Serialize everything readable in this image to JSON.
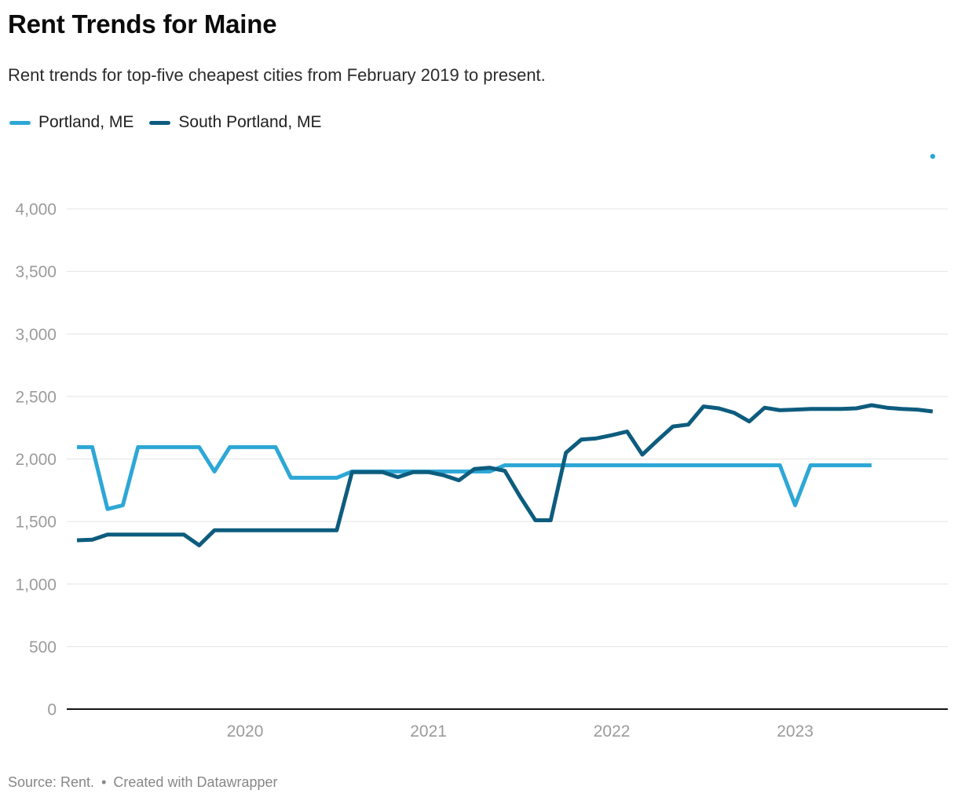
{
  "header": {
    "title": "Rent Trends for Maine",
    "subtitle": "Rent trends for top-five cheapest cities from February 2019 to present."
  },
  "footer": {
    "source": "Source: Rent.",
    "separator": "•",
    "attribution": "Created with Datawrapper"
  },
  "colors": {
    "portland": "#2da7d6",
    "south_portland": "#0d5c7e",
    "gridline": "#e4e4e4",
    "axis_text": "#9b9b9b",
    "baseline": "#151515"
  },
  "chart_data": {
    "type": "line",
    "title": "Rent Trends for Maine",
    "xlabel": "",
    "ylabel": "",
    "grid": "horizontal",
    "legend_position": "top-left",
    "ylim": [
      0,
      4470
    ],
    "y_ticks": [
      0,
      500,
      1000,
      1500,
      2000,
      2500,
      3000,
      3500,
      4000
    ],
    "y_tick_labels": [
      "0",
      "500",
      "1,000",
      "1,500",
      "2,000",
      "2,500",
      "3,000",
      "3,500",
      "4,000"
    ],
    "x_tick_labels": [
      "2020",
      "2021",
      "2022",
      "2023"
    ],
    "x": [
      "2019-02",
      "2019-03",
      "2019-04",
      "2019-05",
      "2019-06",
      "2019-07",
      "2019-08",
      "2019-09",
      "2019-10",
      "2019-11",
      "2019-12",
      "2020-01",
      "2020-02",
      "2020-03",
      "2020-04",
      "2020-05",
      "2020-06",
      "2020-07",
      "2020-08",
      "2020-09",
      "2020-10",
      "2020-11",
      "2020-12",
      "2021-01",
      "2021-02",
      "2021-03",
      "2021-04",
      "2021-05",
      "2021-06",
      "2021-07",
      "2021-08",
      "2021-09",
      "2021-10",
      "2021-11",
      "2021-12",
      "2022-01",
      "2022-02",
      "2022-03",
      "2022-04",
      "2022-05",
      "2022-06",
      "2022-07",
      "2022-08",
      "2022-09",
      "2022-10",
      "2022-11",
      "2022-12",
      "2023-01",
      "2023-02",
      "2023-03",
      "2023-04",
      "2023-05",
      "2023-06",
      "2023-07",
      "2023-08",
      "2023-09",
      "2023-10"
    ],
    "series": [
      {
        "name": "Portland, ME",
        "color": "#2da7d6",
        "values": [
          2095,
          2095,
          1600,
          1630,
          2095,
          2095,
          2095,
          2095,
          2095,
          1900,
          2095,
          2095,
          2095,
          2095,
          1850,
          1850,
          1850,
          1850,
          1900,
          1900,
          1900,
          1900,
          1900,
          1900,
          1900,
          1900,
          1900,
          1900,
          1950,
          1950,
          1950,
          1950,
          1950,
          1950,
          1950,
          1950,
          1950,
          1950,
          1950,
          1950,
          1950,
          1950,
          1950,
          1950,
          1950,
          1950,
          1950,
          1630,
          1950,
          1950,
          1950,
          1950,
          1950,
          null,
          null,
          null,
          4420
        ]
      },
      {
        "name": "South Portland, ME",
        "color": "#0d5c7e",
        "values": [
          1350,
          1355,
          1395,
          1395,
          1395,
          1395,
          1395,
          1395,
          1310,
          1430,
          1430,
          1430,
          1430,
          1430,
          1430,
          1430,
          1430,
          1430,
          1895,
          1895,
          1895,
          1855,
          1895,
          1895,
          1870,
          1830,
          1920,
          1930,
          1905,
          1700,
          1510,
          1510,
          2050,
          2155,
          2165,
          2190,
          2220,
          2035,
          2150,
          2260,
          2275,
          2420,
          2405,
          2370,
          2300,
          2410,
          2390,
          2395,
          2400,
          2400,
          2400,
          2405,
          2430,
          2410,
          2400,
          2395,
          2380
        ]
      }
    ]
  }
}
